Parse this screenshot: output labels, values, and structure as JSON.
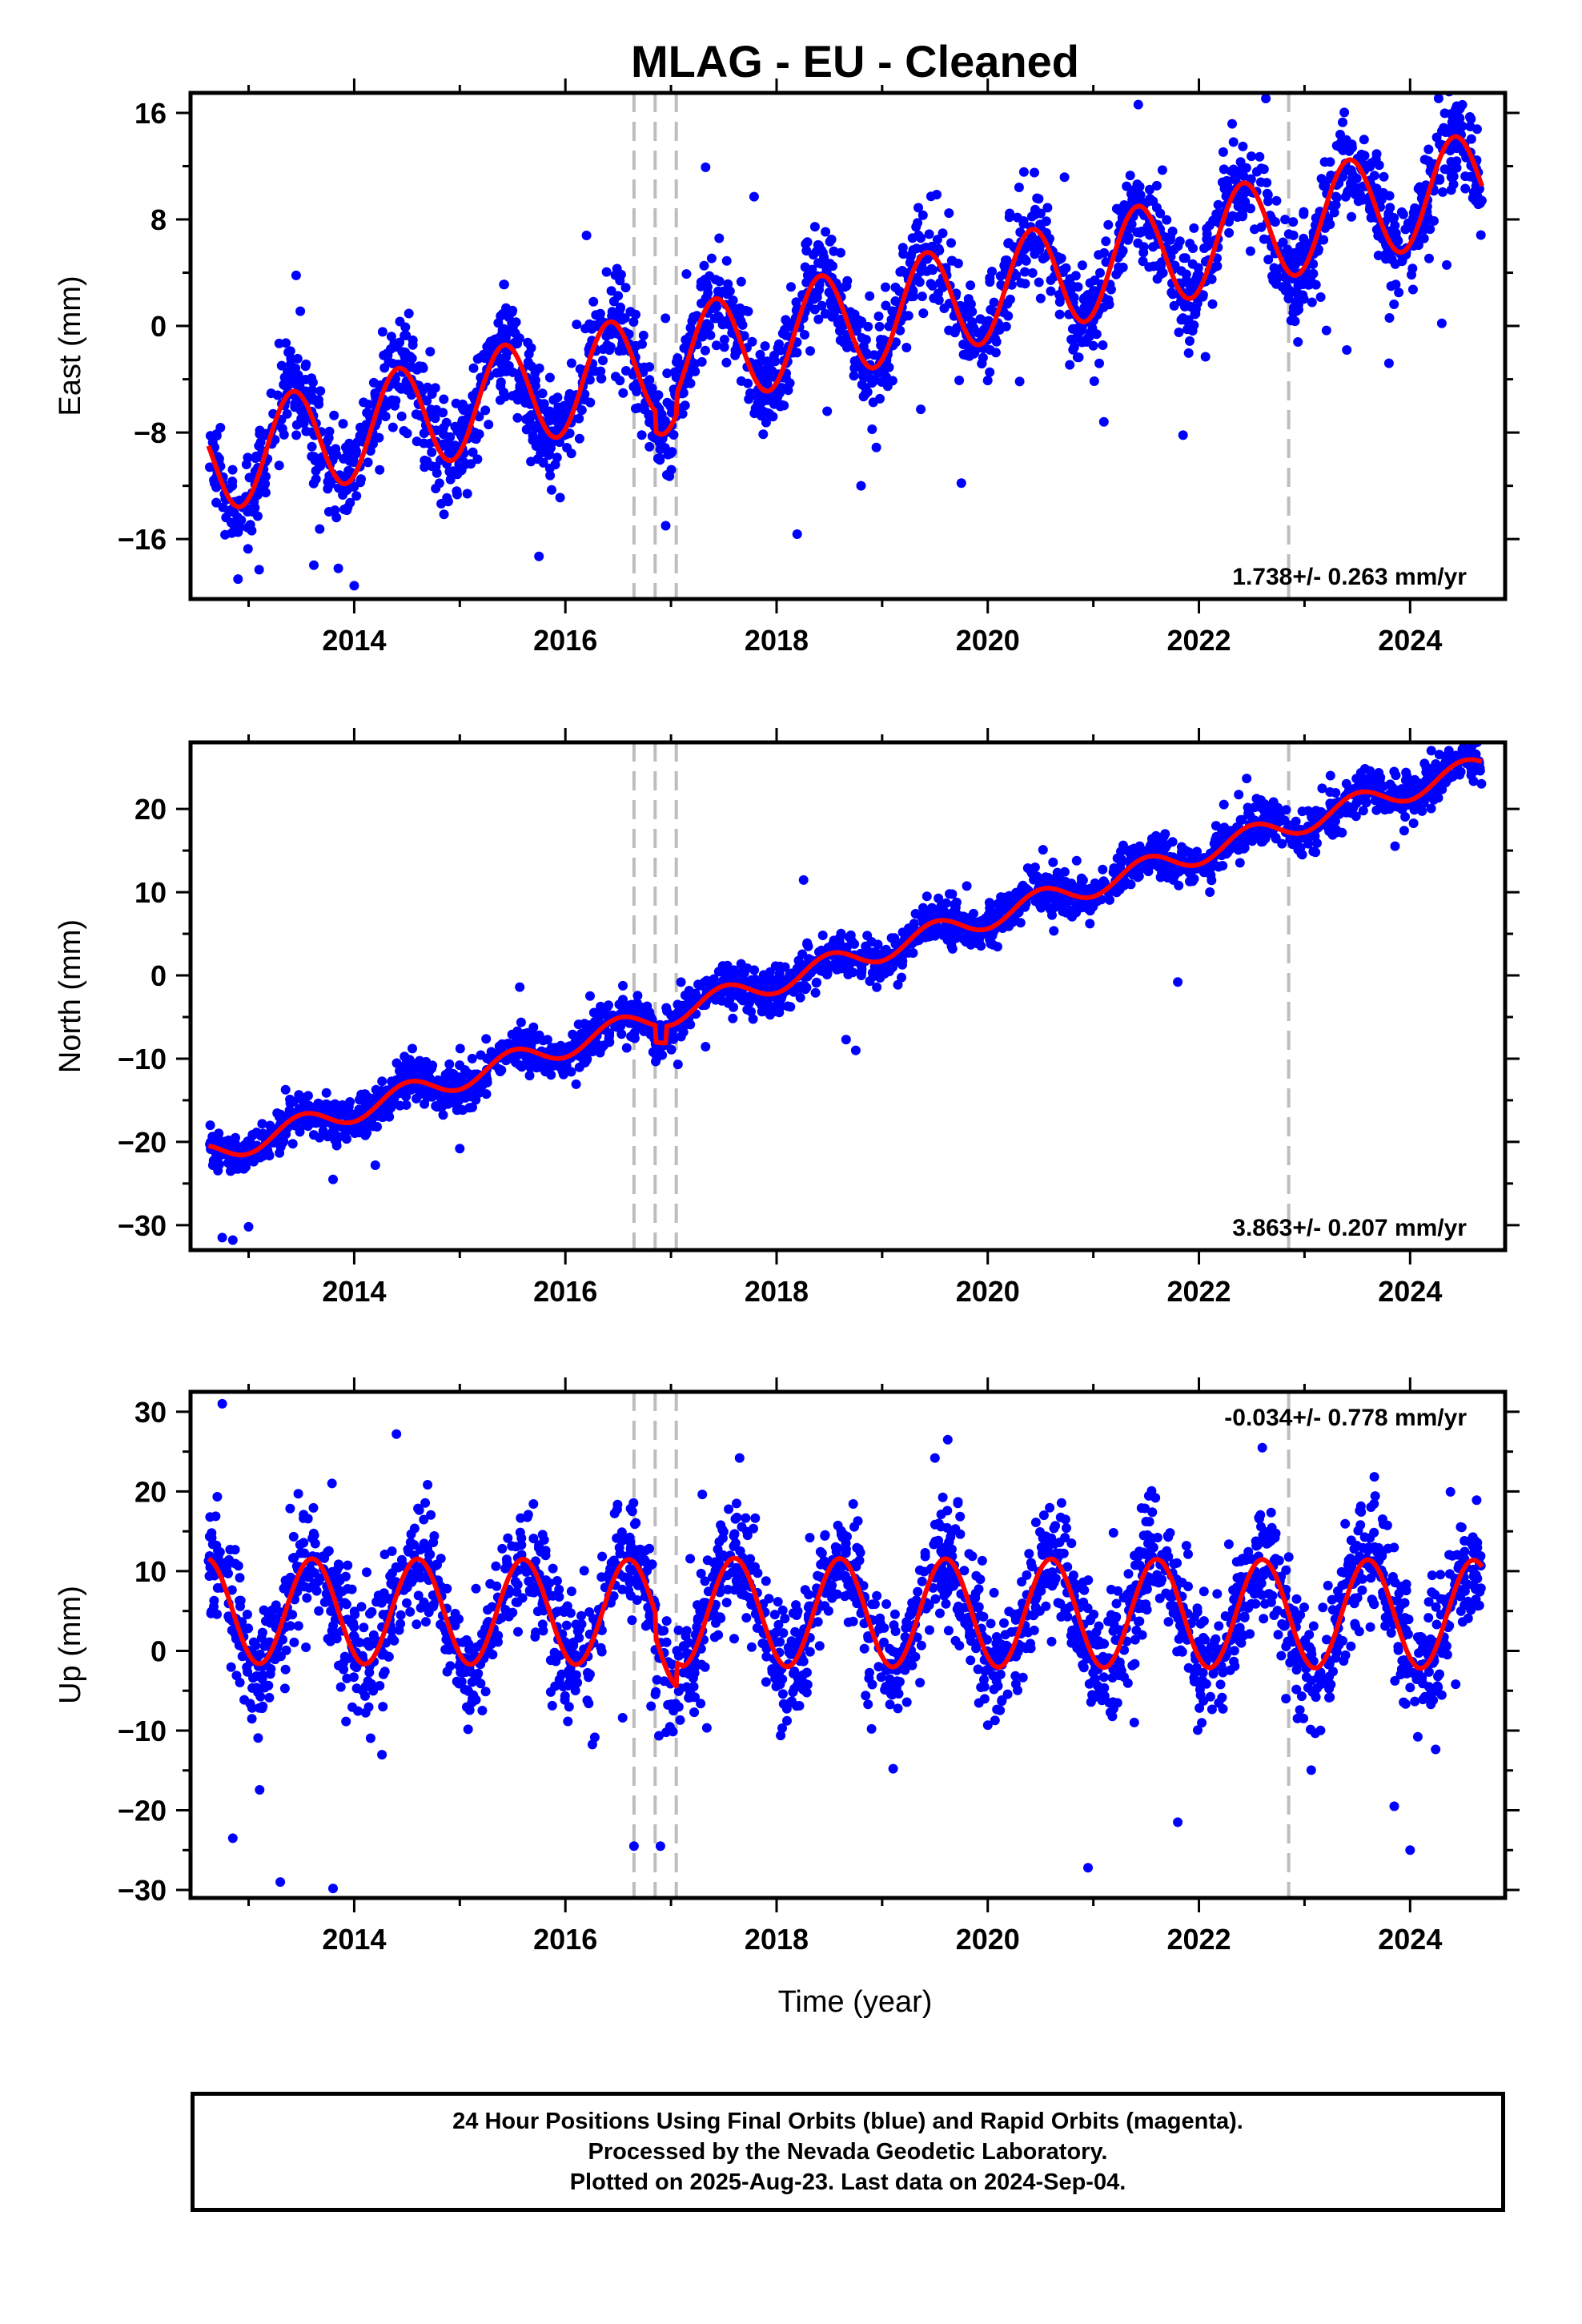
{
  "page": {
    "title": "MLAG  - EU - Cleaned",
    "xlabel": "Time (year)"
  },
  "colors": {
    "points": "#0000ff",
    "fit": "#ff0000",
    "steps": "#bdbdbd",
    "frame": "#000000"
  },
  "footer": {
    "line1": "24 Hour Positions Using Final Orbits (blue) and Rapid Orbits (magenta).",
    "line2": "Processed by the Nevada Geodetic Laboratory.",
    "line3": "Plotted on 2025-Aug-23. Last data on 2024-Sep-04."
  },
  "chart_data": [
    {
      "type": "scatter",
      "title": "MLAG  - EU - Cleaned",
      "ylabel": "East (mm)",
      "xlabel": "",
      "xlim": [
        2012.45,
        2024.9
      ],
      "ylim": [
        -20.5,
        17.5
      ],
      "xticks": [
        2014,
        2016,
        2018,
        2020,
        2022,
        2024
      ],
      "yticks": [
        16,
        8,
        0,
        -8,
        -16
      ],
      "ytick_labels": [
        "16",
        "8",
        "0",
        "−8",
        "−16"
      ],
      "rate_label": "1.738+/- 0.263 mm/yr",
      "rate_position": "bottom-right",
      "step_lines": [
        2016.65,
        2016.85,
        2017.05,
        2022.85
      ],
      "series": [
        {
          "kind": "points",
          "color": "#0000ff",
          "data": {
            "start": 2012.62,
            "end": 2024.68,
            "count": 2400,
            "noise": 1.8,
            "outlier_fraction": 0.03,
            "outlier_scale": 3
          }
        },
        {
          "kind": "fit",
          "color": "#ff0000",
          "model": {
            "t0": 2012.62,
            "value_at_t0": -10.2,
            "rate": 1.738,
            "annual_amplitude": 3.9,
            "annual_peak_year_fraction": 0.42,
            "offsets": [
              {
                "year": 2016.85,
                "amount": -1.5
              },
              {
                "year": 2017.05,
                "amount": 1.5
              }
            ]
          }
        }
      ],
      "extra_points": [
        [
          2012.9,
          -19
        ],
        [
          2013.1,
          -18.3
        ],
        [
          2013.45,
          3.8
        ],
        [
          2013.85,
          -18.2
        ],
        [
          2014.0,
          -19.5
        ],
        [
          2015.75,
          -17.3
        ],
        [
          2016.2,
          6.8
        ],
        [
          2016.95,
          -15
        ],
        [
          2018.8,
          -12
        ],
        [
          2019.75,
          -11.8
        ],
        [
          2021.1,
          -7.2
        ],
        [
          2021.85,
          -8.2
        ],
        [
          2023.4,
          -1.8
        ],
        [
          2023.8,
          -2.8
        ],
        [
          2024.3,
          0.2
        ]
      ]
    },
    {
      "type": "scatter",
      "ylabel": "North (mm)",
      "xlabel": "",
      "xlim": [
        2012.45,
        2024.9
      ],
      "ylim": [
        -33,
        28
      ],
      "xticks": [
        2014,
        2016,
        2018,
        2020,
        2022,
        2024
      ],
      "yticks": [
        20,
        10,
        0,
        -10,
        -20,
        -30
      ],
      "ytick_labels": [
        "20",
        "10",
        "0",
        "−10",
        "−20",
        "−30"
      ],
      "rate_label": "3.863+/- 0.207 mm/yr",
      "rate_position": "bottom-right",
      "step_lines": [
        2016.65,
        2016.85,
        2017.05,
        2022.85
      ],
      "series": [
        {
          "kind": "points",
          "color": "#0000ff",
          "data": {
            "start": 2012.62,
            "end": 2024.68,
            "count": 2400,
            "noise": 1.3,
            "outlier_fraction": 0.02,
            "outlier_scale": 3
          }
        },
        {
          "kind": "fit",
          "color": "#ff0000",
          "model": {
            "t0": 2012.62,
            "value_at_t0": -21.5,
            "rate": 3.863,
            "annual_amplitude": 1.4,
            "annual_peak_year_fraction": 0.5,
            "offsets": [
              {
                "year": 2016.85,
                "amount": -2.0
              },
              {
                "year": 2016.95,
                "amount": 2.0
              }
            ]
          }
        }
      ],
      "extra_points": [
        [
          2012.75,
          -31.5
        ],
        [
          2012.85,
          -31.8
        ],
        [
          2013.0,
          -30.2
        ],
        [
          2013.8,
          -24.5
        ],
        [
          2014.2,
          -22.8
        ],
        [
          2015.0,
          -20.8
        ],
        [
          2018.75,
          -9
        ],
        [
          2021.8,
          -0.8
        ],
        [
          2023.3,
          17.5
        ],
        [
          2024.2,
          27
        ]
      ]
    },
    {
      "type": "scatter",
      "ylabel": "Up (mm)",
      "xlabel": "Time (year)",
      "xlim": [
        2012.45,
        2024.9
      ],
      "ylim": [
        -31,
        32.5
      ],
      "xticks": [
        2014,
        2016,
        2018,
        2020,
        2022,
        2024
      ],
      "yticks": [
        30,
        20,
        10,
        0,
        -10,
        -20,
        -30
      ],
      "ytick_labels": [
        "30",
        "20",
        "10",
        "0",
        "−10",
        "−20",
        "−30"
      ],
      "rate_label": "-0.034+/- 0.778 mm/yr",
      "rate_position": "top-right",
      "step_lines": [
        2016.65,
        2016.85,
        2017.05,
        2022.85
      ],
      "series": [
        {
          "kind": "points",
          "color": "#0000ff",
          "data": {
            "start": 2012.62,
            "end": 2024.68,
            "count": 2400,
            "noise": 3.7,
            "outlier_fraction": 0.03,
            "outlier_scale": 2.6
          }
        },
        {
          "kind": "fit",
          "color": "#ff0000",
          "model": {
            "t0": 2012.62,
            "value_at_t0": 5.0,
            "rate": -0.034,
            "annual_amplitude": 6.6,
            "annual_peak_year_fraction": 0.6,
            "amplitude_after": {
              "year": 2017.1,
              "value": 6.8
            },
            "offsets": [
              {
                "year": 2016.85,
                "amount": -3.0
              },
              {
                "year": 2017.05,
                "amount": 3.0
              }
            ]
          }
        }
      ],
      "extra_points": [
        [
          2012.75,
          31
        ],
        [
          2012.85,
          -23.5
        ],
        [
          2013.3,
          -29
        ],
        [
          2013.8,
          -29.8
        ],
        [
          2014.4,
          27.2
        ],
        [
          2016.65,
          -24.5
        ],
        [
          2016.9,
          -24.5
        ],
        [
          2020.95,
          -27.2
        ],
        [
          2021.8,
          -21.5
        ],
        [
          2023.85,
          -19.5
        ],
        [
          2024.0,
          -25
        ],
        [
          2022.6,
          25.5
        ],
        [
          2017.65,
          24.2
        ],
        [
          2019.5,
          24.2
        ]
      ]
    }
  ]
}
